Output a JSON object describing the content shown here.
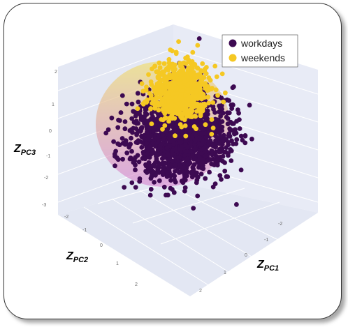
{
  "chart_data": {
    "type": "scatter",
    "subtype": "3d-scatter-with-sphere",
    "axes": {
      "x": {
        "label": "Z",
        "sub": "PC1",
        "ticks": [
          "-2",
          "-1",
          "0",
          "1",
          "2"
        ]
      },
      "y": {
        "label": "Z",
        "sub": "PC2",
        "ticks": [
          "-2",
          "-1",
          "0",
          "1",
          "2"
        ]
      },
      "z": {
        "label": "Z",
        "sub": "PC3",
        "ticks": [
          "-3",
          "-2",
          "-1",
          "0",
          "1",
          "2"
        ]
      }
    },
    "range": [
      -3,
      2.5
    ],
    "sphere": {
      "center": [
        0,
        0,
        0
      ],
      "radius": 2,
      "color_top": "#f0e060",
      "color_bottom": "#d97fd2"
    },
    "series": [
      {
        "name": "workdays",
        "color": "#3d0a52",
        "count": 1500,
        "z_center": -0.9,
        "spread": 1.05
      },
      {
        "name": "weekends",
        "color": "#f5c823",
        "count": 650,
        "z_center": 0.7,
        "spread": 0.6
      }
    ],
    "legend": {
      "position": "top-right"
    },
    "scene_background": "#e6eaf5",
    "grid": true
  }
}
